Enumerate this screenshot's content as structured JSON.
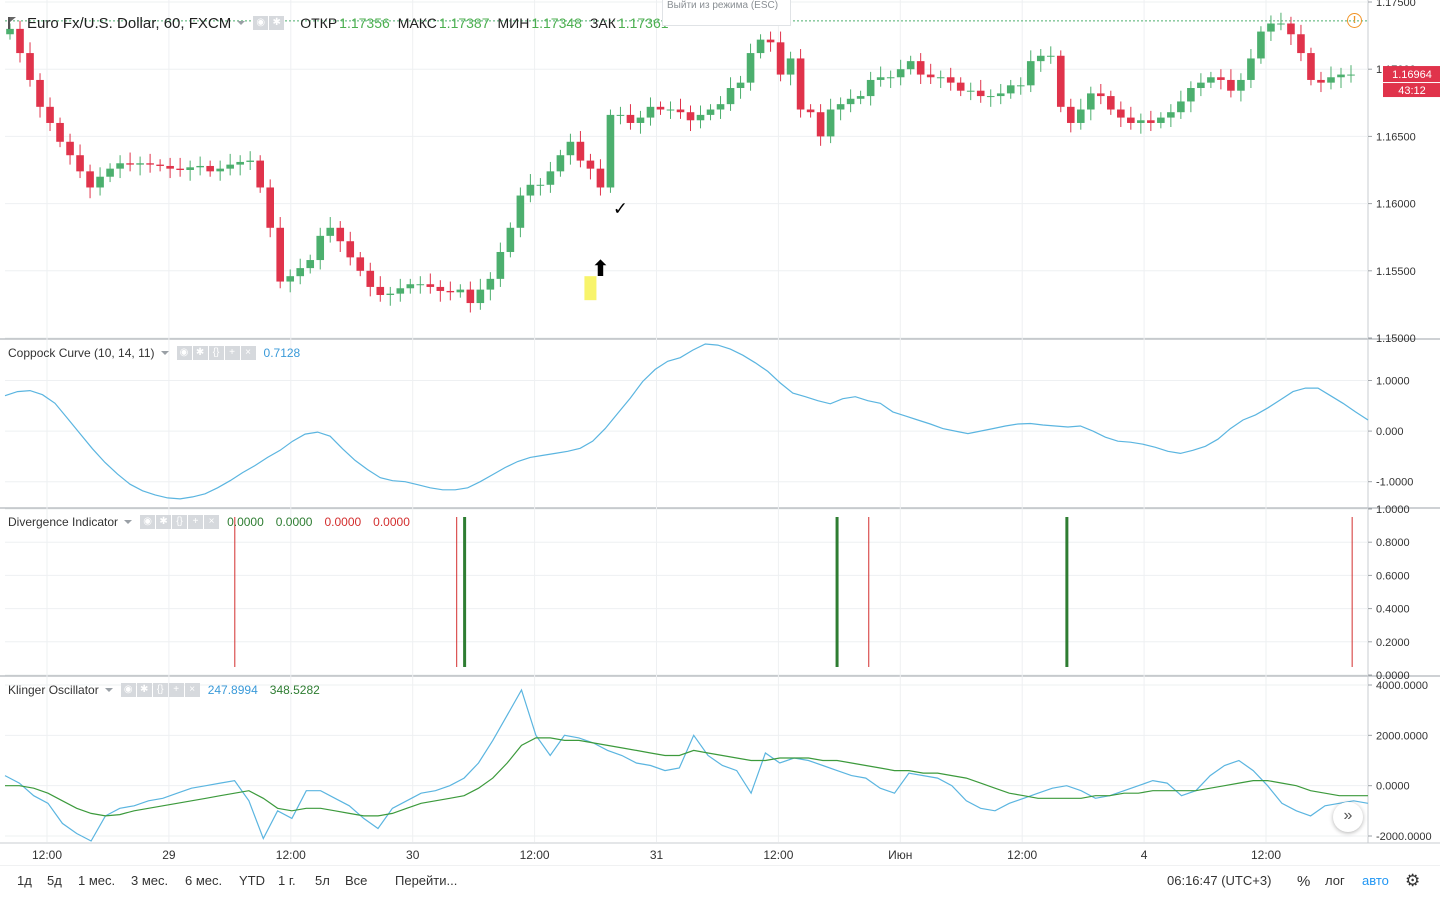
{
  "main": {
    "symbol": "Euro Fx/U.S. Dollar, 60, FXCM",
    "open_label": "ОТКР",
    "open": "1.17356",
    "high_label": "МАКС",
    "high": "1.17387",
    "low_label": "МИН",
    "low": "1.17348",
    "close_label": "ЗАК",
    "close": "1.17361",
    "price_badge": "1.16964",
    "time_badge": "43:12",
    "tooltip": "Выйти из режима (ESC)",
    "warning_icon": "!"
  },
  "indicators": {
    "coppock": {
      "name": "Coppock Curve (10, 14, 11)",
      "value": "0.7128",
      "color": "#4aa8d8"
    },
    "divergence": {
      "name": "Divergence Indicator",
      "values": [
        "0.0000",
        "0.0000",
        "0.0000",
        "0.0000"
      ],
      "value_colors": [
        "#2e7d32",
        "#2e7d32",
        "#d32f2f",
        "#d32f2f"
      ]
    },
    "klinger": {
      "name": "Klinger Oscillator",
      "value1": "247.8994",
      "value2": "348.5282",
      "color1": "#4aa8d8",
      "color2": "#2e7d32"
    }
  },
  "controls": [
    "eye-icon",
    "gear-icon",
    "braces-icon",
    "plus-icon",
    "close-icon"
  ],
  "bottom_bar": {
    "ranges": [
      "1д",
      "5д",
      "1 мес.",
      "3 мес.",
      "6 мес.",
      "YTD",
      "1 г.",
      "5л",
      "Все"
    ],
    "goto": "Перейти...",
    "clock": "06:16:47 (UTC+3)",
    "percent": "%",
    "log": "лог",
    "auto": "авто"
  },
  "colors": {
    "up": "#4caf6e",
    "down": "#e0334b",
    "coppock": "#5bb5e0",
    "klinger_signal": "#3c9a3c",
    "auto_active": "#2196f3"
  },
  "chart_data": [
    {
      "type": "candlestick",
      "title": "Euro Fx/U.S. Dollar, 60, FXCM",
      "ylim": [
        1.15,
        1.175
      ],
      "yticks": [
        "1.17500",
        "1.17000",
        "1.16500",
        "1.16000",
        "1.15500",
        "1.15000"
      ],
      "xticks": [
        "12:00",
        "29",
        "12:00",
        "30",
        "12:00",
        "31",
        "12:00",
        "Июн",
        "12:00",
        "4",
        "12:00"
      ],
      "close_series": [
        1.173,
        1.1712,
        1.1692,
        1.1672,
        1.166,
        1.1646,
        1.1636,
        1.1624,
        1.1612,
        1.162,
        1.1626,
        1.163,
        1.1629,
        1.163,
        1.1629,
        1.1628,
        1.1626,
        1.1625,
        1.1627,
        1.1628,
        1.1624,
        1.1626,
        1.1629,
        1.1631,
        1.1632,
        1.1612,
        1.1582,
        1.1542,
        1.1546,
        1.1552,
        1.1558,
        1.1576,
        1.1582,
        1.1572,
        1.156,
        1.155,
        1.1538,
        1.1532,
        1.1533,
        1.1537,
        1.154,
        1.154,
        1.1538,
        1.1535,
        1.1534,
        1.1536,
        1.1526,
        1.1536,
        1.1544,
        1.1564,
        1.1582,
        1.1606,
        1.1614,
        1.1614,
        1.1624,
        1.1636,
        1.1646,
        1.1632,
        1.1626,
        1.1612,
        1.1666,
        1.1666,
        1.166,
        1.1664,
        1.1672,
        1.167,
        1.167,
        1.1668,
        1.1662,
        1.1666,
        1.167,
        1.1674,
        1.1686,
        1.169,
        1.1712,
        1.1722,
        1.172,
        1.1696,
        1.1708,
        1.167,
        1.1668,
        1.165,
        1.167,
        1.1674,
        1.1678,
        1.168,
        1.1692,
        1.1694,
        1.1694,
        1.17,
        1.1706,
        1.1696,
        1.1694,
        1.1694,
        1.169,
        1.1684,
        1.1684,
        1.168,
        1.168,
        1.1682,
        1.1688,
        1.1688,
        1.1706,
        1.171,
        1.171,
        1.1672,
        1.166,
        1.167,
        1.1682,
        1.168,
        1.167,
        1.1664,
        1.166,
        1.1662,
        1.166,
        1.1664,
        1.1668,
        1.1676,
        1.1686,
        1.169,
        1.1694,
        1.1692,
        1.1684,
        1.1692,
        1.1708,
        1.1728,
        1.1734,
        1.1734,
        1.1726,
        1.1712,
        1.1692,
        1.169,
        1.1694,
        1.1696,
        1.1696
      ],
      "marker_up_arrow": "1.1552",
      "checkmark": "✓"
    },
    {
      "type": "line",
      "title": "Coppock Curve (10, 14, 11)",
      "ylim": [
        -1.5,
        1.8
      ],
      "yticks": [
        "1.0000",
        "0.000",
        "-1.0000"
      ],
      "values": [
        0.7,
        0.78,
        0.8,
        0.72,
        0.55,
        0.25,
        -0.05,
        -0.35,
        -0.62,
        -0.85,
        -1.05,
        -1.18,
        -1.26,
        -1.32,
        -1.34,
        -1.3,
        -1.24,
        -1.12,
        -0.98,
        -0.82,
        -0.68,
        -0.52,
        -0.38,
        -0.2,
        -0.06,
        -0.02,
        -0.1,
        -0.35,
        -0.58,
        -0.76,
        -0.92,
        -0.98,
        -1.0,
        -1.06,
        -1.12,
        -1.16,
        -1.16,
        -1.12,
        -1.0,
        -0.86,
        -0.72,
        -0.6,
        -0.52,
        -0.48,
        -0.44,
        -0.4,
        -0.34,
        -0.2,
        0.05,
        0.35,
        0.65,
        0.98,
        1.22,
        1.38,
        1.45,
        1.6,
        1.72,
        1.7,
        1.62,
        1.5,
        1.35,
        1.18,
        0.95,
        0.75,
        0.68,
        0.6,
        0.54,
        0.64,
        0.68,
        0.6,
        0.55,
        0.38,
        0.3,
        0.22,
        0.14,
        0.05,
        0.0,
        -0.05,
        0.0,
        0.05,
        0.1,
        0.14,
        0.15,
        0.12,
        0.1,
        0.08,
        0.1,
        0.0,
        -0.12,
        -0.2,
        -0.22,
        -0.26,
        -0.32,
        -0.4,
        -0.44,
        -0.38,
        -0.3,
        -0.16,
        0.05,
        0.22,
        0.32,
        0.46,
        0.62,
        0.78,
        0.85,
        0.85,
        0.7,
        0.55,
        0.38,
        0.22
      ],
      "label": "0.7128"
    },
    {
      "type": "bar",
      "title": "Divergence Indicator",
      "ylim": [
        0,
        1
      ],
      "yticks": [
        "1.0000",
        "0.8000",
        "0.6000",
        "0.4000",
        "0.2000",
        "0.0000"
      ],
      "spikes": [
        {
          "index": 29,
          "value": 1.0,
          "color": "#d32f2f"
        },
        {
          "index": 57,
          "value": 1.0,
          "color": "#d32f2f"
        },
        {
          "index": 58,
          "value": 1.0,
          "color": "#2e7d32",
          "thick": true
        },
        {
          "index": 105,
          "value": 1.0,
          "color": "#2e7d32",
          "thick": true
        },
        {
          "index": 109,
          "value": 1.0,
          "color": "#d32f2f"
        },
        {
          "index": 134,
          "value": 1.0,
          "color": "#2e7d32",
          "thick": true
        },
        {
          "index": 170,
          "value": 1.0,
          "color": "#d32f2f"
        }
      ]
    },
    {
      "type": "line",
      "title": "Klinger Oscillator",
      "ylim": [
        -2000,
        4000
      ],
      "yticks": [
        "4000.0000",
        "2000.0000",
        "0.0000",
        "-2000.0000"
      ],
      "series": [
        {
          "name": "247.8994",
          "values": [
            400,
            100,
            -400,
            -700,
            -1500,
            -1900,
            -2200,
            -1200,
            -900,
            -800,
            -600,
            -500,
            -300,
            -100,
            0,
            100,
            200,
            -600,
            -2100,
            -1000,
            -1300,
            -200,
            -200,
            -500,
            -800,
            -1300,
            -1700,
            -900,
            -600,
            -300,
            -200,
            0,
            300,
            900,
            1800,
            2800,
            3800,
            2000,
            1200,
            2000,
            1900,
            1700,
            1400,
            1200,
            900,
            800,
            600,
            700,
            2000,
            1200,
            800,
            600,
            -300,
            1300,
            900,
            1100,
            1000,
            800,
            600,
            400,
            300,
            -100,
            -300,
            500,
            400,
            300,
            0,
            -600,
            -900,
            -1000,
            -700,
            -500,
            -300,
            -100,
            0,
            -200,
            -500,
            -400,
            -200,
            0,
            200,
            100,
            -400,
            -200,
            400,
            800,
            1000,
            600,
            0,
            -700,
            -1000,
            -1200,
            -800,
            -700,
            -600,
            -700
          ],
          "color": "#5bb5e0"
        },
        {
          "name": "348.5282",
          "values": [
            0,
            0,
            -100,
            -300,
            -600,
            -900,
            -1100,
            -1200,
            -1150,
            -1000,
            -900,
            -800,
            -700,
            -600,
            -500,
            -400,
            -300,
            -200,
            -500,
            -900,
            -1000,
            -900,
            -900,
            -1000,
            -1100,
            -1200,
            -1200,
            -1100,
            -900,
            -700,
            -600,
            -500,
            -400,
            -100,
            300,
            900,
            1600,
            1900,
            1900,
            1800,
            1800,
            1700,
            1600,
            1500,
            1400,
            1300,
            1200,
            1200,
            1400,
            1300,
            1200,
            1100,
            1000,
            1000,
            1100,
            1100,
            1100,
            1000,
            1000,
            900,
            800,
            700,
            600,
            600,
            500,
            500,
            400,
            300,
            100,
            -100,
            -300,
            -400,
            -500,
            -500,
            -500,
            -500,
            -400,
            -400,
            -300,
            -300,
            -200,
            -200,
            -200,
            -200,
            -100,
            0,
            100,
            200,
            200,
            100,
            0,
            -200,
            -300,
            -400,
            -400,
            -400
          ],
          "color": "#3c9a3c"
        }
      ]
    }
  ]
}
